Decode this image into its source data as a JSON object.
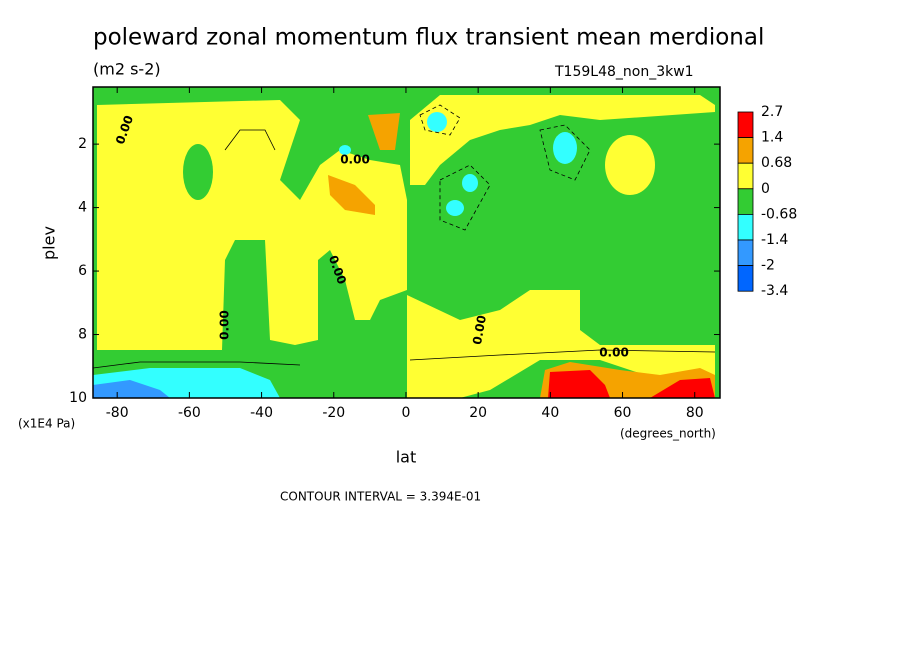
{
  "chart_data": {
    "type": "contour",
    "title": "poleward zonal momentum flux transient mean merdional",
    "subtitle": "(m2 s-2)",
    "dataset": "T159L48_non_3kw1",
    "x_label": "lat",
    "x_units": "(degrees_north)",
    "y_label": "plev",
    "y_units": "(x1E4 Pa)",
    "xlim": [
      -86.7,
      87
    ],
    "ylim": [
      0.2,
      10
    ],
    "y_inverted": true,
    "xticks": [
      -80,
      -60,
      -40,
      -20,
      0,
      20,
      40,
      60,
      80
    ],
    "yticks": [
      2,
      4,
      6,
      8,
      10
    ],
    "levels": [
      2.7,
      1.4,
      0.68,
      0,
      -0.68,
      -1.4,
      -2,
      -3.4
    ],
    "colors": [
      "#ff0000",
      "#f5a300",
      "#ffff33",
      "#33cc33",
      "#33ffff",
      "#3399ff",
      "#0066ff"
    ],
    "contour_labels": [
      "0.00",
      "0.00",
      "0.00",
      "0.00",
      "0.00",
      "0.00"
    ],
    "footnote": "CONTOUR INTERVAL = 3.394E-01"
  }
}
